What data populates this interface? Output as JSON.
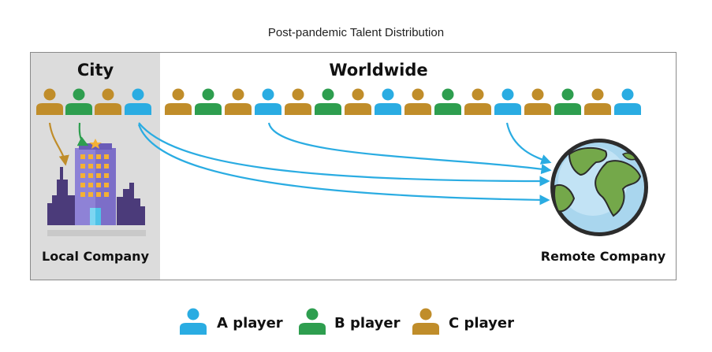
{
  "title": "Post-pandemic Talent Distribution",
  "regions": {
    "city": "City",
    "worldwide": "Worldwide"
  },
  "companies": {
    "local": "Local Company",
    "remote": "Remote Company"
  },
  "colors": {
    "A": "#2aace2",
    "B": "#2e9e4f",
    "C": "#c08d2a",
    "arrow_blue": "#2aace2",
    "arrow_green": "#2e9e4f",
    "arrow_gold": "#c08d2a"
  },
  "city_players": [
    "C",
    "B",
    "C",
    "A"
  ],
  "worldwide_players": [
    "C",
    "B",
    "C",
    "A",
    "C",
    "B",
    "C",
    "A",
    "C",
    "B",
    "C",
    "A",
    "C",
    "B",
    "C",
    "A"
  ],
  "legend": [
    {
      "player": "A",
      "label": "A player",
      "icon": "person-icon"
    },
    {
      "player": "B",
      "label": "B player",
      "icon": "person-icon"
    },
    {
      "player": "C",
      "label": "C player",
      "icon": "person-icon"
    }
  ]
}
